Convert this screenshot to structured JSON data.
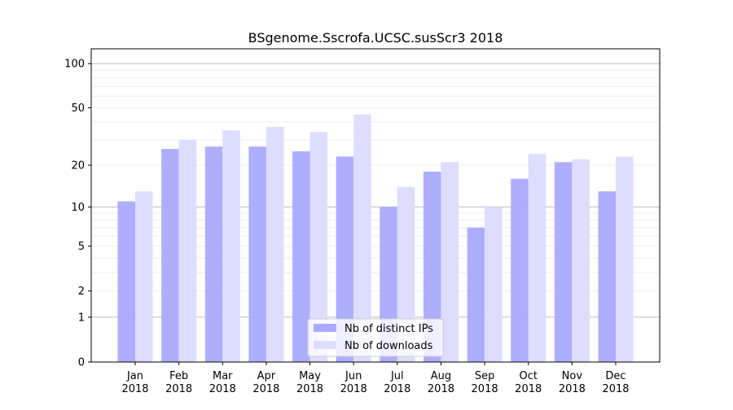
{
  "chart_data": {
    "type": "bar",
    "title": "BSgenome.Sscrofa.UCSC.susScr3 2018",
    "xlabel": "",
    "ylabel": "",
    "yscale": "log(1+y)",
    "ylim": [
      0,
      120
    ],
    "yticks": [
      0,
      1,
      2,
      5,
      10,
      20,
      50,
      100
    ],
    "categories": [
      [
        "Jan",
        "2018"
      ],
      [
        "Feb",
        "2018"
      ],
      [
        "Mar",
        "2018"
      ],
      [
        "Apr",
        "2018"
      ],
      [
        "May",
        "2018"
      ],
      [
        "Jun",
        "2018"
      ],
      [
        "Jul",
        "2018"
      ],
      [
        "Aug",
        "2018"
      ],
      [
        "Sep",
        "2018"
      ],
      [
        "Oct",
        "2018"
      ],
      [
        "Nov",
        "2018"
      ],
      [
        "Dec",
        "2018"
      ]
    ],
    "series": [
      {
        "name": "Nb of distinct IPs",
        "color": "#aaaaff",
        "values": [
          11,
          26,
          27,
          27,
          25,
          23,
          10,
          18,
          7,
          16,
          21,
          13
        ]
      },
      {
        "name": "Nb of downloads",
        "color": "#ddddff",
        "values": [
          13,
          30,
          35,
          37,
          34,
          45,
          14,
          21,
          10,
          24,
          22,
          23
        ]
      }
    ],
    "grid": true,
    "legend": "bottom-center"
  }
}
